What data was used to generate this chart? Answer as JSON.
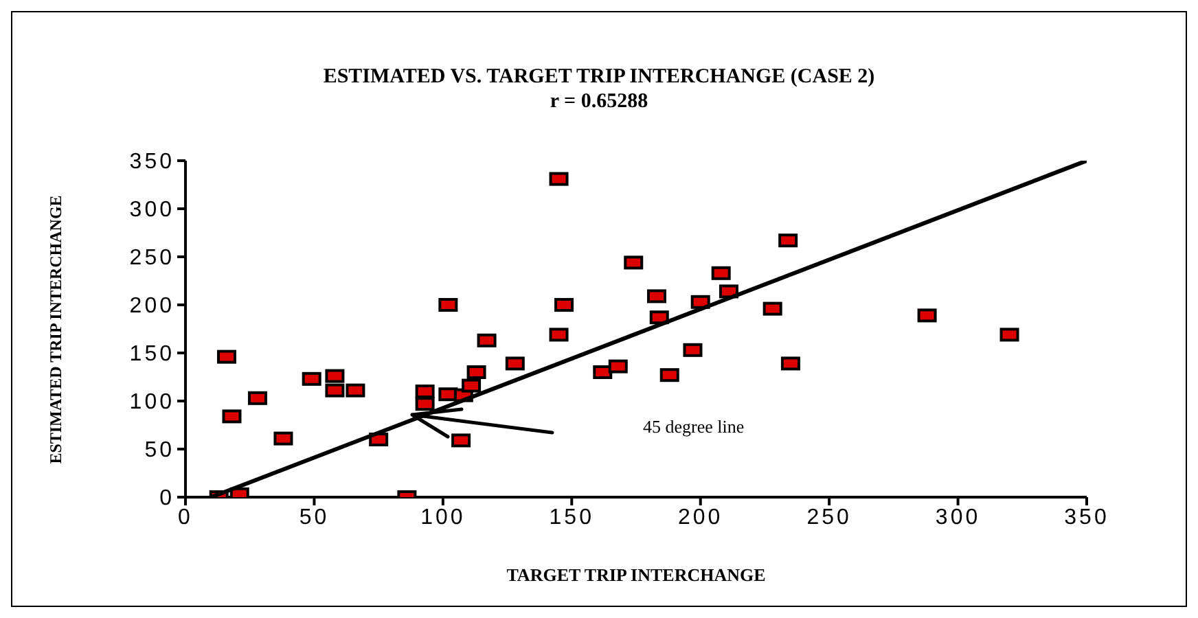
{
  "chart_data": {
    "type": "scatter",
    "title": "ESTIMATED VS. TARGET TRIP INTERCHANGE (CASE 2)",
    "subtitle": "r = 0.65288",
    "xlabel": "TARGET TRIP INTERCHANGE",
    "ylabel": "ESTIMATED TRIP INTERCHANGE",
    "xlim": [
      0,
      350
    ],
    "ylim": [
      0,
      350
    ],
    "xticks": [
      0,
      50,
      100,
      150,
      200,
      250,
      300,
      350
    ],
    "yticks": [
      0,
      50,
      100,
      150,
      200,
      250,
      300,
      350
    ],
    "marker": "square",
    "annotations": [
      "45 degree line"
    ],
    "series": [
      {
        "type": "scatter",
        "color": "#dd0000",
        "x": [
          13,
          21,
          16,
          18,
          28,
          38,
          49,
          58,
          58,
          66,
          75,
          86,
          93,
          93,
          102,
          102,
          108,
          107,
          111,
          113,
          117,
          128,
          145,
          145,
          147,
          162,
          168,
          174,
          183,
          184,
          188,
          197,
          200,
          208,
          211,
          228,
          235,
          234,
          288,
          320
        ],
        "values": [
          0,
          3,
          146,
          84,
          103,
          61,
          123,
          126,
          111,
          111,
          60,
          0,
          110,
          97,
          107,
          200,
          106,
          59,
          116,
          130,
          163,
          139,
          331,
          169,
          200,
          130,
          136,
          244,
          209,
          187,
          127,
          153,
          203,
          233,
          214,
          196,
          139,
          267,
          189,
          169
        ]
      },
      {
        "type": "line",
        "color": "#000000",
        "marker": "none",
        "x": [
          10,
          350
        ],
        "values": [
          0,
          350
        ]
      }
    ]
  }
}
